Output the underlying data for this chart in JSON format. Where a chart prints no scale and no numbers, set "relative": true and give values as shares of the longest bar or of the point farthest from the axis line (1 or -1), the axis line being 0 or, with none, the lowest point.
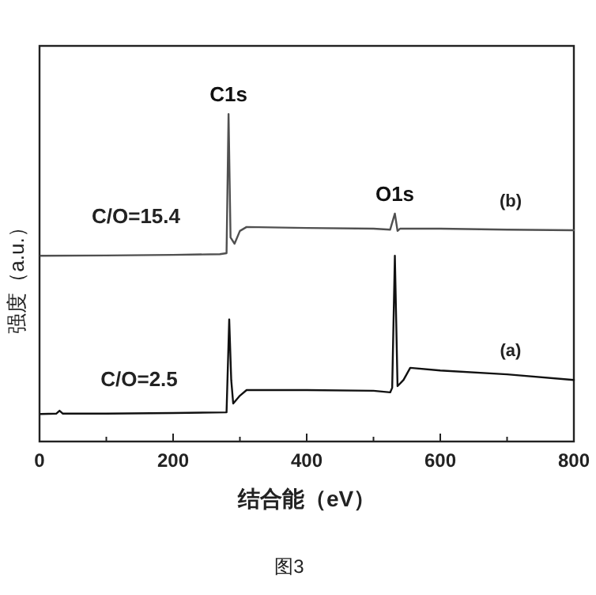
{
  "chart_data": {
    "type": "line",
    "relative": true,
    "xlabel": "结合能（eV）",
    "ylabel": "强度（a.u.）",
    "xlim": [
      0,
      800
    ],
    "xticks": [
      0,
      {
        "value": 100,
        "label": null
      },
      200,
      {
        "value": 300,
        "label": null
      },
      400,
      {
        "value": 500,
        "label": null
      },
      600,
      {
        "value": 700,
        "label": null
      },
      800
    ],
    "grid": false,
    "series": [
      {
        "name": "(b)",
        "color": "#505050",
        "x": [
          2,
          100,
          200,
          270,
          280,
          283,
          286,
          292,
          300,
          310,
          400,
          500,
          525,
          532,
          536,
          540,
          600,
          700,
          800
        ],
        "values": [
          0.567,
          0.568,
          0.57,
          0.572,
          0.575,
          1.0,
          0.623,
          0.604,
          0.643,
          0.655,
          0.652,
          0.65,
          0.647,
          0.696,
          0.643,
          0.65,
          0.65,
          0.647,
          0.645
        ]
      },
      {
        "name": "(a)",
        "color": "#111111",
        "x": [
          2,
          25,
          30,
          35,
          100,
          200,
          280,
          284,
          287,
          290,
          300,
          310,
          400,
          500,
          525,
          528,
          532,
          536,
          545,
          555,
          600,
          700,
          800
        ],
        "values": [
          0.084,
          0.085,
          0.094,
          0.085,
          0.085,
          0.087,
          0.089,
          0.373,
          0.188,
          0.116,
          0.14,
          0.157,
          0.157,
          0.155,
          0.15,
          0.164,
          0.567,
          0.169,
          0.188,
          0.225,
          0.217,
          0.205,
          0.188
        ]
      }
    ],
    "annotations": [
      {
        "text": "C1s",
        "x": 283,
        "y": 1.0
      },
      {
        "text": "O1s",
        "x": 532,
        "y": 0.696
      },
      "C/O=15.4",
      "C/O=2.5",
      "图3"
    ]
  }
}
